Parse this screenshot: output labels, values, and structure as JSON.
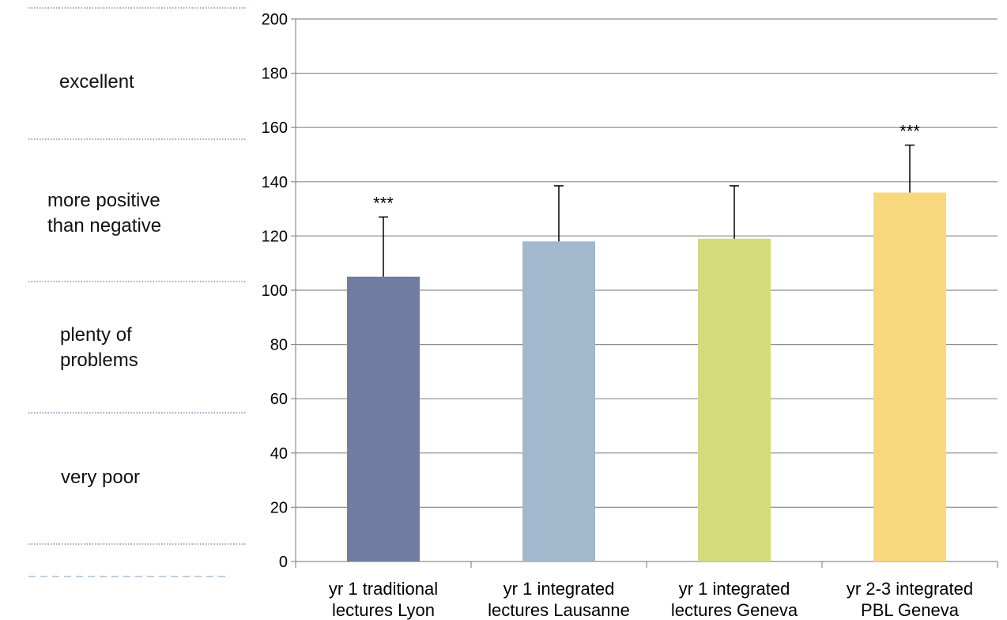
{
  "rating_bands": [
    {
      "lines": [
        "excellent"
      ]
    },
    {
      "lines": [
        "more positive",
        "than negative"
      ]
    },
    {
      "lines": [
        "plenty of",
        "problems"
      ]
    },
    {
      "lines": [
        "very poor"
      ]
    }
  ],
  "chart_data": {
    "type": "bar",
    "categories": [
      [
        "yr 1 traditional",
        "lectures Lyon"
      ],
      [
        "yr 1 integrated",
        "lectures Lausanne"
      ],
      [
        "yr 1 integrated",
        "lectures Geneva"
      ],
      [
        "yr 2-3 integrated",
        "PBL Geneva"
      ]
    ],
    "values": [
      105,
      118,
      119,
      136
    ],
    "error_upper": [
      127,
      138.5,
      138.5,
      153.5
    ],
    "significance": [
      "***",
      "",
      "",
      "***"
    ],
    "colors": [
      "#717ca1",
      "#a2b8cd",
      "#d4db7c",
      "#f8d87c"
    ],
    "ylim": [
      0,
      200
    ],
    "yticks": [
      0,
      20,
      40,
      60,
      80,
      100,
      120,
      140,
      160,
      180,
      200
    ],
    "grid": true,
    "title": "",
    "xlabel": "",
    "ylabel": ""
  }
}
